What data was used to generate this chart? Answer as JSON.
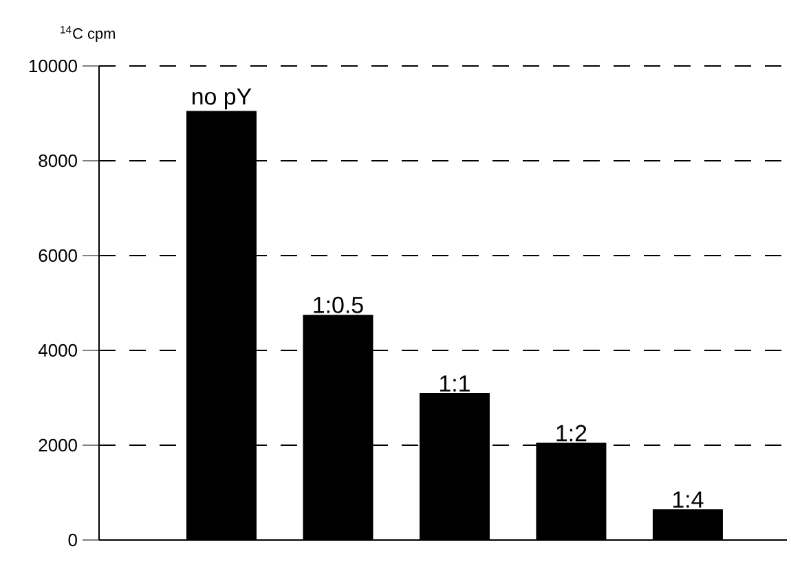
{
  "chart_data": {
    "type": "bar",
    "ylabel": "$^{14}$C cpm",
    "categories": [
      "no pY",
      "1:0.5",
      "1:1",
      "1:2",
      "1:4"
    ],
    "values": [
      9050,
      4750,
      3100,
      2050,
      650
    ],
    "color": "#000000",
    "ylim": [
      0,
      10000
    ],
    "yticks": [
      0,
      2000,
      4000,
      6000,
      8000,
      10000
    ],
    "grid": "y",
    "line_style": "dashed"
  }
}
